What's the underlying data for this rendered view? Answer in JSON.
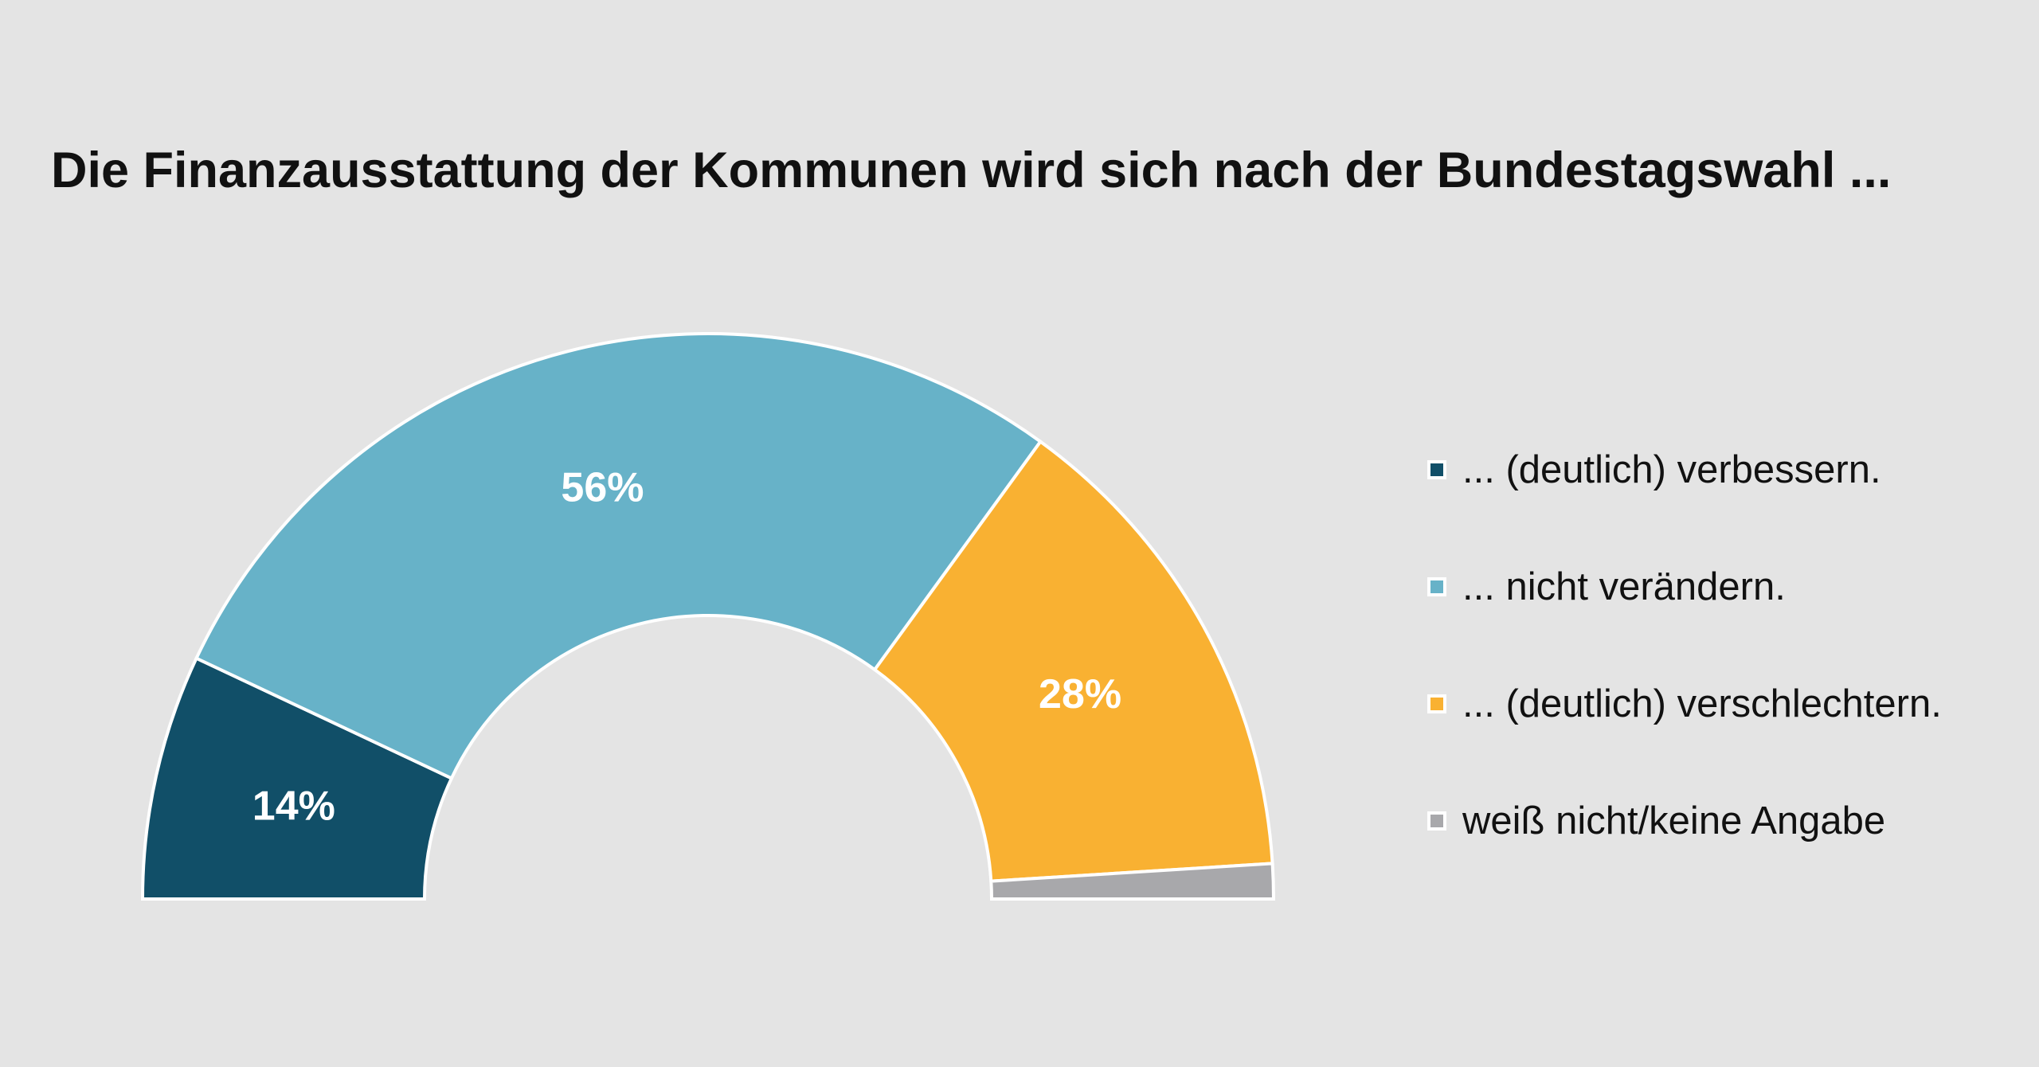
{
  "chart_data": {
    "type": "pie",
    "variant": "half-donut",
    "title": "Die Finanzausstattung der Kommunen wird sich nach der Bundestagswahl ...",
    "legend_position": "right",
    "slices": [
      {
        "name": "... (deutlich) verbessern.",
        "value": 14,
        "label": "14%",
        "color": "#114f68"
      },
      {
        "name": "... nicht verändern.",
        "value": 56,
        "label": "56%",
        "color": "#67b2c8"
      },
      {
        "name": "... (deutlich) verschlechtern.",
        "value": 28,
        "label": "28%",
        "color": "#f9b132"
      },
      {
        "name": "weiß nicht/keine Angabe",
        "value": 2,
        "label": "",
        "color": "#a8a8ab"
      }
    ]
  }
}
